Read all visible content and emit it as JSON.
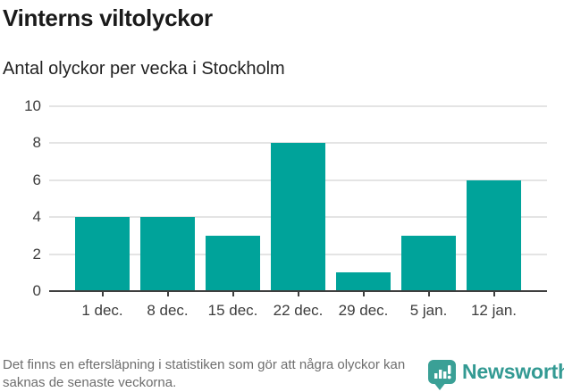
{
  "header": {
    "title": "Vinterns viltolyckor",
    "subtitle": "Antal olyckor per vecka i Stockholm"
  },
  "chart_data": {
    "type": "bar",
    "categories": [
      "1 dec.",
      "8 dec.",
      "15 dec.",
      "22 dec.",
      "29 dec.",
      "5 jan.",
      "12 jan."
    ],
    "values": [
      4,
      4,
      3,
      8,
      1,
      3,
      6
    ],
    "title": "Vinterns viltolyckor",
    "subtitle": "Antal olyckor per vecka i Stockholm",
    "xlabel": "",
    "ylabel": "",
    "ylim": [
      0,
      10
    ],
    "yticks": [
      0,
      2,
      4,
      6,
      8,
      10
    ],
    "grid": "horizontal",
    "legend": "none",
    "bar_color": "#00a39a"
  },
  "footer": {
    "note": "Det finns en eftersläpning i statistiken som gör att några olyckor kan saknas de senaste veckorna.",
    "brand": "Newsworthy"
  },
  "colors": {
    "bar": "#00a39a",
    "axis_line": "#3f3f3f",
    "gridline": "#e4e4e4",
    "axis_text": "#3d3d3d",
    "title_text": "#1a1a1a",
    "note_text": "#6e6e6e",
    "brand_teal": "#339a93",
    "logo_box": "#3aa096",
    "background": "#ffffff"
  }
}
